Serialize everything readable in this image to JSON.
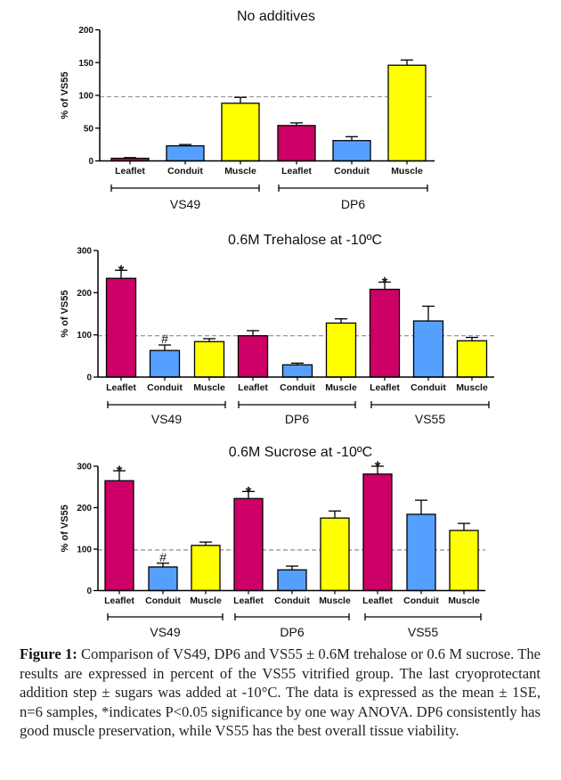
{
  "colors": {
    "Leaflet": "#cc0066",
    "Conduit": "#55a0ff",
    "Muscle": "#ffff00",
    "reference_line": "#999999"
  },
  "chart_data": [
    {
      "type": "bar",
      "title": "No additives",
      "ylabel": "% of VS55",
      "xlabel": "",
      "ylim": [
        0,
        200
      ],
      "yticks": [
        0,
        50,
        100,
        150,
        200
      ],
      "reference_line": 98,
      "categories": [
        "Leaflet",
        "Conduit",
        "Muscle",
        "Leaflet",
        "Conduit",
        "Muscle"
      ],
      "groups": [
        {
          "label": "VS49",
          "start": 0,
          "end": 2
        },
        {
          "label": "DP6",
          "start": 3,
          "end": 5
        }
      ],
      "values": [
        4,
        23,
        88,
        54,
        31,
        146
      ],
      "errors": [
        1,
        2,
        9,
        4,
        6,
        8
      ],
      "annotations": [
        "",
        "",
        "",
        "",
        "",
        ""
      ]
    },
    {
      "type": "bar",
      "title": "0.6M Trehalose at -10ºC",
      "ylabel": "% of VS55",
      "xlabel": "",
      "ylim": [
        0,
        300
      ],
      "yticks": [
        0,
        100,
        200,
        300
      ],
      "reference_line": 98,
      "categories": [
        "Leaflet",
        "Conduit",
        "Muscle",
        "Leaflet",
        "Conduit",
        "Muscle",
        "Leaflet",
        "Conduit",
        "Muscle"
      ],
      "groups": [
        {
          "label": "VS49",
          "start": 0,
          "end": 2
        },
        {
          "label": "DP6",
          "start": 3,
          "end": 5
        },
        {
          "label": "VS55",
          "start": 6,
          "end": 8
        }
      ],
      "values": [
        234,
        63,
        84,
        98,
        29,
        128,
        208,
        133,
        86
      ],
      "errors": [
        19,
        13,
        7,
        12,
        4,
        10,
        17,
        35,
        8
      ],
      "annotations": [
        "*",
        "#",
        "",
        "",
        "",
        "",
        "*",
        "",
        ""
      ]
    },
    {
      "type": "bar",
      "title": "0.6M Sucrose at -10ºC",
      "ylabel": "% of VS55",
      "xlabel": "",
      "ylim": [
        0,
        300
      ],
      "yticks": [
        0,
        100,
        200,
        300
      ],
      "reference_line": 98,
      "categories": [
        "Leaflet",
        "Conduit",
        "Muscle",
        "Leaflet",
        "Conduit",
        "Muscle",
        "Leaflet",
        "Conduit",
        "Muscle"
      ],
      "groups": [
        {
          "label": "VS49",
          "start": 0,
          "end": 2
        },
        {
          "label": "DP6",
          "start": 3,
          "end": 5
        },
        {
          "label": "VS55",
          "start": 6,
          "end": 8
        }
      ],
      "values": [
        265,
        57,
        109,
        222,
        50,
        175,
        281,
        184,
        145
      ],
      "errors": [
        24,
        9,
        8,
        17,
        9,
        17,
        19,
        34,
        17
      ],
      "annotations": [
        "*",
        "#",
        "",
        "*",
        "",
        "",
        "*",
        "",
        ""
      ]
    }
  ],
  "caption": {
    "label": "Figure 1:",
    "text": " Comparison of VS49, DP6 and VS55 ± 0.6M trehalose or 0.6 M sucrose. The results are expressed in percent of the VS55 vitrified group. The last cryoprotectant addition step ± sugars was added at -10°C. The data is expressed as the mean ± 1SE, n=6 samples, *indicates P<0.05 significance by one way ANOVA. DP6 consistently has good muscle preservation, while VS55 has the best overall tissue viability."
  }
}
